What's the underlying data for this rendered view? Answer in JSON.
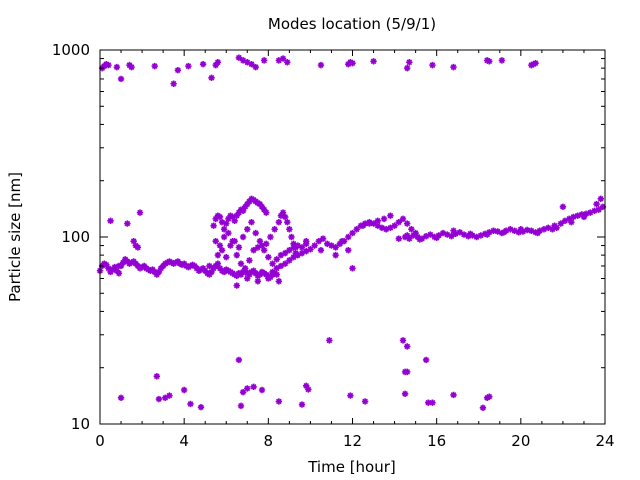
{
  "chart_data": {
    "type": "scatter",
    "title": "Modes location (5/9/1)",
    "xlabel": "Time [hour]",
    "ylabel": "Particle size [nm]",
    "xlim": [
      0,
      24
    ],
    "ylim": [
      10,
      1000
    ],
    "yscale": "log",
    "grid": false,
    "legend": "none",
    "marker": "asterisk",
    "point_color": "#9400d3",
    "x_ticks": [
      0,
      4,
      8,
      12,
      16,
      20,
      24
    ],
    "y_ticks": [
      10,
      100,
      1000
    ],
    "x_tick_labels": [
      "0",
      "4",
      "8",
      "12",
      "16",
      "20",
      "24"
    ],
    "y_tick_labels": [
      "10",
      "100",
      "1000"
    ],
    "points": [
      [
        0.0,
        66
      ],
      [
        0.1,
        70
      ],
      [
        0.2,
        72
      ],
      [
        0.3,
        71
      ],
      [
        0.4,
        68
      ],
      [
        0.5,
        65
      ],
      [
        0.6,
        67
      ],
      [
        0.7,
        69
      ],
      [
        0.8,
        66
      ],
      [
        0.9,
        64
      ],
      [
        1.0,
        70
      ],
      [
        1.1,
        73
      ],
      [
        1.2,
        76
      ],
      [
        1.3,
        74
      ],
      [
        1.4,
        72
      ],
      [
        1.5,
        73
      ],
      [
        1.6,
        74
      ],
      [
        1.7,
        72
      ],
      [
        1.8,
        70
      ],
      [
        1.9,
        68
      ],
      [
        2.0,
        69
      ],
      [
        2.1,
        70
      ],
      [
        2.2,
        68
      ],
      [
        2.3,
        67
      ],
      [
        2.4,
        66
      ],
      [
        2.5,
        67
      ],
      [
        2.6,
        65
      ],
      [
        2.7,
        63
      ],
      [
        2.8,
        65
      ],
      [
        2.9,
        68
      ],
      [
        3.0,
        70
      ],
      [
        3.1,
        72
      ],
      [
        3.2,
        73
      ],
      [
        3.3,
        74
      ],
      [
        3.4,
        73
      ],
      [
        3.5,
        72
      ],
      [
        3.6,
        73
      ],
      [
        3.7,
        74
      ],
      [
        3.8,
        72
      ],
      [
        3.9,
        71
      ],
      [
        4.0,
        72
      ],
      [
        4.1,
        70
      ],
      [
        4.2,
        69
      ],
      [
        4.3,
        70
      ],
      [
        4.4,
        71
      ],
      [
        4.5,
        70
      ],
      [
        4.6,
        68
      ],
      [
        4.7,
        66
      ],
      [
        4.8,
        67
      ],
      [
        4.9,
        68
      ],
      [
        5.0,
        66
      ],
      [
        5.1,
        64
      ],
      [
        5.2,
        63
      ],
      [
        5.3,
        65
      ],
      [
        5.4,
        68
      ],
      [
        5.5,
        70
      ],
      [
        5.6,
        72
      ],
      [
        5.7,
        68
      ],
      [
        5.8,
        66
      ],
      [
        5.9,
        65
      ],
      [
        6.0,
        67
      ],
      [
        6.1,
        66
      ],
      [
        6.2,
        65
      ],
      [
        6.3,
        64
      ],
      [
        6.4,
        63
      ],
      [
        6.5,
        62
      ],
      [
        6.6,
        64
      ],
      [
        6.7,
        63
      ],
      [
        6.8,
        65
      ],
      [
        6.9,
        66
      ],
      [
        7.0,
        64
      ],
      [
        7.1,
        63
      ],
      [
        7.2,
        65
      ],
      [
        7.3,
        66
      ],
      [
        7.4,
        64
      ],
      [
        7.5,
        62
      ],
      [
        7.6,
        63
      ],
      [
        7.7,
        65
      ],
      [
        7.8,
        64
      ],
      [
        7.9,
        63
      ],
      [
        8.0,
        62
      ],
      [
        8.1,
        61
      ],
      [
        8.2,
        63
      ],
      [
        8.3,
        64
      ],
      [
        8.4,
        63
      ],
      [
        0.5,
        122
      ],
      [
        0.9,
        70
      ],
      [
        1.3,
        118
      ],
      [
        1.6,
        95
      ],
      [
        1.7,
        90
      ],
      [
        1.8,
        88
      ],
      [
        1.9,
        135
      ],
      [
        5.4,
        115
      ],
      [
        5.5,
        125
      ],
      [
        5.6,
        130
      ],
      [
        5.7,
        128
      ],
      [
        5.8,
        120
      ],
      [
        5.9,
        110
      ],
      [
        6.0,
        118
      ],
      [
        6.1,
        125
      ],
      [
        6.2,
        130
      ],
      [
        6.3,
        128
      ],
      [
        6.4,
        122
      ],
      [
        6.5,
        130
      ],
      [
        6.6,
        135
      ],
      [
        6.7,
        140
      ],
      [
        6.8,
        138
      ],
      [
        6.9,
        145
      ],
      [
        7.0,
        150
      ],
      [
        7.1,
        155
      ],
      [
        7.2,
        160
      ],
      [
        7.3,
        158
      ],
      [
        7.4,
        155
      ],
      [
        7.5,
        152
      ],
      [
        7.6,
        150
      ],
      [
        7.7,
        145
      ],
      [
        7.8,
        140
      ],
      [
        7.9,
        135
      ],
      [
        5.5,
        95
      ],
      [
        5.7,
        90
      ],
      [
        5.9,
        100
      ],
      [
        6.1,
        105
      ],
      [
        6.3,
        95
      ],
      [
        6.5,
        80
      ],
      [
        6.7,
        72
      ],
      [
        6.9,
        68
      ],
      [
        7.1,
        75
      ],
      [
        7.3,
        85
      ],
      [
        7.5,
        88
      ],
      [
        7.7,
        90
      ],
      [
        7.9,
        92
      ],
      [
        8.1,
        100
      ],
      [
        8.3,
        110
      ],
      [
        8.5,
        120
      ],
      [
        8.6,
        130
      ],
      [
        8.7,
        135
      ],
      [
        8.8,
        128
      ],
      [
        8.9,
        120
      ],
      [
        9.0,
        110
      ],
      [
        9.1,
        100
      ],
      [
        9.2,
        92
      ],
      [
        9.3,
        88
      ],
      [
        5.2,
        70
      ],
      [
        5.6,
        80
      ],
      [
        5.8,
        85
      ],
      [
        6.0,
        78
      ],
      [
        6.2,
        90
      ],
      [
        6.4,
        95
      ],
      [
        6.6,
        88
      ],
      [
        6.8,
        100
      ],
      [
        7.0,
        110
      ],
      [
        7.2,
        120
      ],
      [
        7.4,
        105
      ],
      [
        7.6,
        95
      ],
      [
        7.8,
        85
      ],
      [
        8.0,
        78
      ],
      [
        8.2,
        72
      ],
      [
        8.4,
        76
      ],
      [
        8.6,
        80
      ],
      [
        8.8,
        82
      ],
      [
        9.0,
        85
      ],
      [
        9.2,
        88
      ],
      [
        9.4,
        90
      ],
      [
        9.6,
        88
      ],
      [
        9.8,
        92
      ],
      [
        6.5,
        55
      ],
      [
        6.8,
        65
      ],
      [
        7.0,
        60
      ],
      [
        7.5,
        58
      ],
      [
        8.0,
        60
      ],
      [
        8.2,
        65
      ],
      [
        8.4,
        68
      ],
      [
        8.6,
        70
      ],
      [
        8.8,
        72
      ],
      [
        9.0,
        75
      ],
      [
        9.2,
        78
      ],
      [
        9.4,
        80
      ],
      [
        9.6,
        82
      ],
      [
        9.8,
        84
      ],
      [
        10.0,
        86
      ],
      [
        10.2,
        90
      ],
      [
        10.4,
        95
      ],
      [
        10.6,
        98
      ],
      [
        10.8,
        92
      ],
      [
        11.0,
        90
      ],
      [
        11.2,
        88
      ],
      [
        11.4,
        92
      ],
      [
        11.6,
        95
      ],
      [
        11.8,
        100
      ],
      [
        12.0,
        105
      ],
      [
        12.2,
        110
      ],
      [
        12.4,
        115
      ],
      [
        12.6,
        118
      ],
      [
        12.8,
        120
      ],
      [
        13.0,
        118
      ],
      [
        13.2,
        115
      ],
      [
        13.4,
        112
      ],
      [
        13.6,
        110
      ],
      [
        13.8,
        112
      ],
      [
        14.0,
        115
      ],
      [
        8.5,
        58
      ],
      [
        9.3,
        82
      ],
      [
        9.8,
        95
      ],
      [
        10.5,
        85
      ],
      [
        11.2,
        80
      ],
      [
        11.5,
        95
      ],
      [
        11.8,
        85
      ],
      [
        12.0,
        68
      ],
      [
        12.5,
        115
      ],
      [
        12.8,
        118
      ],
      [
        13.2,
        122
      ],
      [
        13.5,
        125
      ],
      [
        13.8,
        130
      ],
      [
        14.2,
        120
      ],
      [
        14.4,
        125
      ],
      [
        14.6,
        118
      ],
      [
        14.8,
        110
      ],
      [
        15.0,
        105
      ],
      [
        14.5,
        100
      ],
      [
        14.7,
        98
      ],
      [
        14.9,
        102
      ],
      [
        15.1,
        100
      ],
      [
        15.3,
        98
      ],
      [
        15.5,
        101
      ],
      [
        15.7,
        103
      ],
      [
        15.9,
        100
      ],
      [
        16.1,
        102
      ],
      [
        16.3,
        105
      ],
      [
        16.5,
        103
      ],
      [
        16.7,
        101
      ],
      [
        16.9,
        104
      ],
      [
        17.1,
        106
      ],
      [
        17.3,
        103
      ],
      [
        17.5,
        101
      ],
      [
        17.7,
        102
      ],
      [
        17.9,
        100
      ],
      [
        18.1,
        102
      ],
      [
        18.3,
        104
      ],
      [
        18.5,
        106
      ],
      [
        18.7,
        108
      ],
      [
        18.9,
        107
      ],
      [
        19.1,
        105
      ],
      [
        19.3,
        108
      ],
      [
        19.5,
        110
      ],
      [
        19.7,
        108
      ],
      [
        19.9,
        106
      ],
      [
        20.1,
        107
      ],
      [
        20.3,
        109
      ],
      [
        20.5,
        108
      ],
      [
        20.7,
        106
      ],
      [
        20.9,
        108
      ],
      [
        21.1,
        110
      ],
      [
        21.3,
        112
      ],
      [
        21.5,
        110
      ],
      [
        21.7,
        112
      ],
      [
        21.9,
        118
      ],
      [
        22.1,
        122
      ],
      [
        22.3,
        125
      ],
      [
        22.5,
        128
      ],
      [
        22.7,
        130
      ],
      [
        22.9,
        132
      ],
      [
        23.1,
        133
      ],
      [
        23.3,
        135
      ],
      [
        23.5,
        138
      ],
      [
        23.7,
        140
      ],
      [
        23.9,
        145
      ],
      [
        14.2,
        98
      ],
      [
        14.6,
        102
      ],
      [
        15.2,
        97
      ],
      [
        16.0,
        99
      ],
      [
        16.8,
        108
      ],
      [
        17.6,
        104
      ],
      [
        18.4,
        103
      ],
      [
        19.2,
        106
      ],
      [
        20.0,
        110
      ],
      [
        20.8,
        105
      ],
      [
        21.6,
        115
      ],
      [
        22.0,
        145
      ],
      [
        22.4,
        120
      ],
      [
        23.0,
        128
      ],
      [
        23.6,
        150
      ],
      [
        23.8,
        160
      ],
      [
        0.1,
        800
      ],
      [
        0.2,
        820
      ],
      [
        0.3,
        840
      ],
      [
        0.4,
        830
      ],
      [
        0.8,
        810
      ],
      [
        1.0,
        700
      ],
      [
        1.4,
        830
      ],
      [
        1.5,
        810
      ],
      [
        2.6,
        820
      ],
      [
        3.5,
        660
      ],
      [
        3.7,
        780
      ],
      [
        4.2,
        820
      ],
      [
        4.9,
        840
      ],
      [
        5.3,
        710
      ],
      [
        5.5,
        830
      ],
      [
        5.6,
        860
      ],
      [
        6.6,
        910
      ],
      [
        6.8,
        880
      ],
      [
        7.0,
        860
      ],
      [
        7.2,
        840
      ],
      [
        7.4,
        810
      ],
      [
        7.8,
        880
      ],
      [
        8.5,
        880
      ],
      [
        8.7,
        900
      ],
      [
        8.9,
        860
      ],
      [
        10.5,
        830
      ],
      [
        11.8,
        840
      ],
      [
        11.9,
        860
      ],
      [
        12.0,
        850
      ],
      [
        13.0,
        870
      ],
      [
        14.6,
        800
      ],
      [
        14.7,
        860
      ],
      [
        15.8,
        830
      ],
      [
        16.8,
        810
      ],
      [
        18.4,
        880
      ],
      [
        18.5,
        870
      ],
      [
        19.1,
        880
      ],
      [
        20.5,
        830
      ],
      [
        20.6,
        840
      ],
      [
        20.7,
        850
      ],
      [
        1.0,
        13.8
      ],
      [
        2.7,
        18
      ],
      [
        2.8,
        13.6
      ],
      [
        3.1,
        13.8
      ],
      [
        3.3,
        14.2
      ],
      [
        4.0,
        15.2
      ],
      [
        4.3,
        12.8
      ],
      [
        4.8,
        12.3
      ],
      [
        6.6,
        22
      ],
      [
        6.7,
        12.5
      ],
      [
        6.8,
        14.8
      ],
      [
        7.0,
        15.5
      ],
      [
        7.3,
        15.8
      ],
      [
        7.7,
        15.2
      ],
      [
        8.5,
        13.2
      ],
      [
        9.6,
        12.7
      ],
      [
        9.8,
        16
      ],
      [
        9.9,
        15.3
      ],
      [
        10.9,
        28
      ],
      [
        11.9,
        14.2
      ],
      [
        12.6,
        13.2
      ],
      [
        14.4,
        28
      ],
      [
        14.5,
        19
      ],
      [
        14.6,
        26
      ],
      [
        14.5,
        14.5
      ],
      [
        14.6,
        19
      ],
      [
        15.5,
        22
      ],
      [
        15.6,
        13
      ],
      [
        15.8,
        13
      ],
      [
        16.8,
        14.3
      ],
      [
        18.2,
        12.2
      ],
      [
        18.4,
        13.8
      ],
      [
        18.5,
        14
      ]
    ]
  }
}
